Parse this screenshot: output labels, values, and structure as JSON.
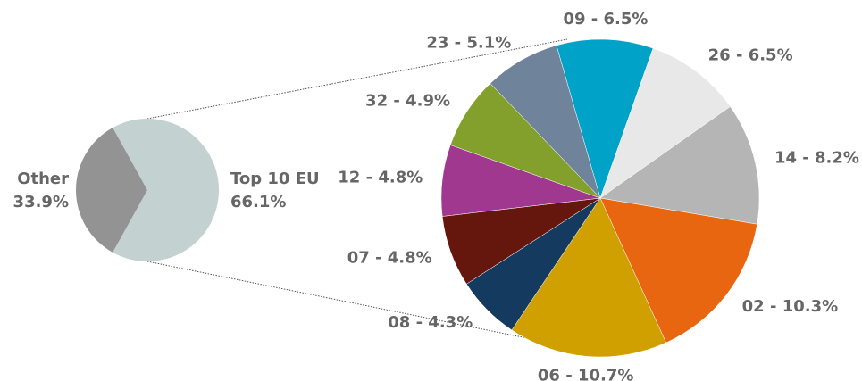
{
  "chart_data": [
    {
      "type": "pie",
      "categories": [
        "Other",
        "Top 10 EU"
      ],
      "values": [
        33.9,
        66.1
      ],
      "value_labels": [
        "33.9%",
        "66.1%"
      ],
      "colors": [
        "#939393",
        "#c3d1d1"
      ]
    },
    {
      "type": "pie",
      "values": [
        6.5,
        6.5,
        8.2,
        10.3,
        10.7,
        4.3,
        4.8,
        4.8,
        4.9,
        5.1
      ],
      "value_labels": [
        "09 - 6.5%",
        "26 - 6.5%",
        "14 - 8.2%",
        "02 - 10.3%",
        "06 - 10.7%",
        "08 - 4.3%",
        "07 - 4.8%",
        "12 - 4.8%",
        "32 - 4.9%",
        "23 - 5.1%"
      ],
      "colors": [
        "#00a3c7",
        "#e8e8e8",
        "#b5b5b5",
        "#e8660f",
        "#d0a000",
        "#153a60",
        "#65170d",
        "#a0388f",
        "#82a02b",
        "#6f849b"
      ]
    }
  ]
}
